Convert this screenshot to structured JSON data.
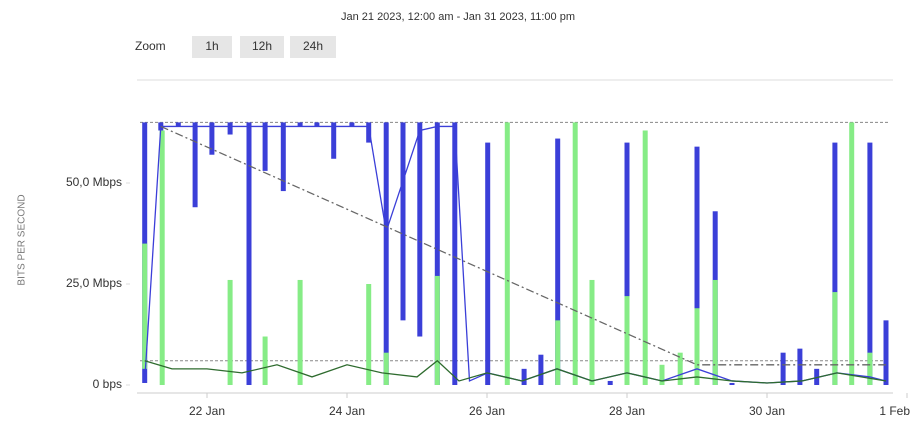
{
  "chart_data": {
    "type": "range-bar",
    "subtitle": "Jan 21 2023, 12:00 am - Jan 31 2023, 11:00 pm",
    "zoom": {
      "label": "Zoom",
      "buttons": [
        "1h",
        "12h",
        "24h"
      ]
    },
    "y_label": "BITS PER SECOND",
    "xlim": [
      21,
      32
    ],
    "xticks": [
      {
        "value": 22,
        "label": "22 Jan"
      },
      {
        "value": 24,
        "label": "24 Jan"
      },
      {
        "value": 26,
        "label": "26 Jan"
      },
      {
        "value": 28,
        "label": "28 Jan"
      },
      {
        "value": 30,
        "label": "30 Jan"
      },
      {
        "value": 32,
        "label": "1 Feb"
      }
    ],
    "ylim": [
      0,
      75
    ],
    "yticks": [
      {
        "value": 0,
        "label": "0 bps"
      },
      {
        "value": 25,
        "label": "25,0 Mbps"
      },
      {
        "value": 50,
        "label": "50,0 Mbps"
      }
    ],
    "grid": false,
    "ranges": [
      {
        "color": "#3b3fd8",
        "x": [
          21.11,
          21.34,
          21.59,
          21.83,
          22.07,
          22.33,
          22.6,
          22.83,
          23.09,
          23.33,
          23.57,
          23.81,
          24.07,
          24.31,
          24.56,
          24.8,
          25.04,
          25.29,
          25.54,
          26.01,
          26.53,
          26.77,
          27.01,
          27.76,
          28.0,
          29.0,
          29.26,
          29.5,
          30.23,
          30.47,
          30.71,
          30.97,
          31.47,
          31.7
        ],
        "low": [
          0.5,
          63,
          64,
          44,
          57,
          62,
          0,
          53,
          48,
          64,
          64,
          56,
          64,
          60,
          0,
          16,
          12,
          0,
          0,
          0,
          0,
          0,
          0,
          0,
          0,
          0,
          0,
          0,
          0,
          0,
          0,
          0,
          0,
          0
        ],
        "high": [
          65,
          65,
          65,
          65,
          65,
          65,
          65,
          65,
          65,
          65,
          65,
          65,
          65,
          65,
          65,
          65,
          65,
          65,
          65,
          60,
          4,
          7.5,
          61,
          1,
          60,
          59,
          43,
          0.5,
          8,
          9,
          4,
          60,
          60,
          16
        ]
      },
      {
        "color": "#86ec86",
        "x": [
          21.11,
          21.36,
          22.33,
          22.83,
          23.33,
          24.31,
          24.56,
          25.29,
          26.29,
          27.01,
          27.26,
          27.5,
          28.0,
          28.26,
          28.5,
          28.76,
          29.0,
          29.26,
          30.97,
          31.21,
          31.47
        ],
        "low": [
          4,
          0,
          0,
          0,
          0,
          0,
          0,
          0,
          0,
          0,
          0,
          0,
          0,
          0,
          0,
          0,
          0,
          0,
          0,
          0,
          0
        ],
        "high": [
          35,
          63,
          26,
          12,
          26,
          25,
          8,
          27,
          65,
          16,
          65,
          26,
          22,
          63,
          5,
          8,
          19,
          26,
          23,
          65,
          8
        ]
      }
    ],
    "lines": [
      {
        "color": "#3b3fd8",
        "x": [
          21.11,
          21.34,
          22.07,
          24.31,
          24.56,
          25.04,
          25.29,
          25.54,
          25.75,
          26.01,
          26.5,
          27.0,
          27.5,
          28.0,
          28.5,
          29.0,
          29.5,
          30.0,
          30.5,
          31.0,
          31.47,
          31.7
        ],
        "values": [
          1,
          64,
          64,
          64,
          38,
          63,
          64,
          64,
          1,
          3,
          1,
          4,
          1,
          3,
          1,
          4,
          1,
          0.5,
          1,
          3,
          2,
          1
        ]
      },
      {
        "color": "#2e6b2e",
        "x": [
          21.11,
          21.5,
          22.0,
          22.5,
          23.0,
          23.5,
          24.0,
          24.5,
          25.0,
          25.29,
          25.6,
          26.0,
          26.5,
          27.0,
          27.5,
          28.0,
          28.5,
          29.0,
          29.5,
          30.0,
          30.5,
          31.0,
          31.7
        ],
        "values": [
          6,
          4,
          4,
          3,
          5,
          2,
          5,
          3,
          2,
          6,
          1,
          3,
          1,
          4,
          1,
          3,
          1,
          2,
          1,
          0.5,
          1,
          3,
          1
        ]
      },
      {
        "color": "#666666",
        "dash": "8 3 2 3",
        "x": [
          21.34,
          29.0,
          31.7
        ],
        "values": [
          64,
          5,
          5
        ]
      }
    ],
    "reference_lines": {
      "color": "#888888",
      "values": [
        65,
        6
      ]
    }
  }
}
